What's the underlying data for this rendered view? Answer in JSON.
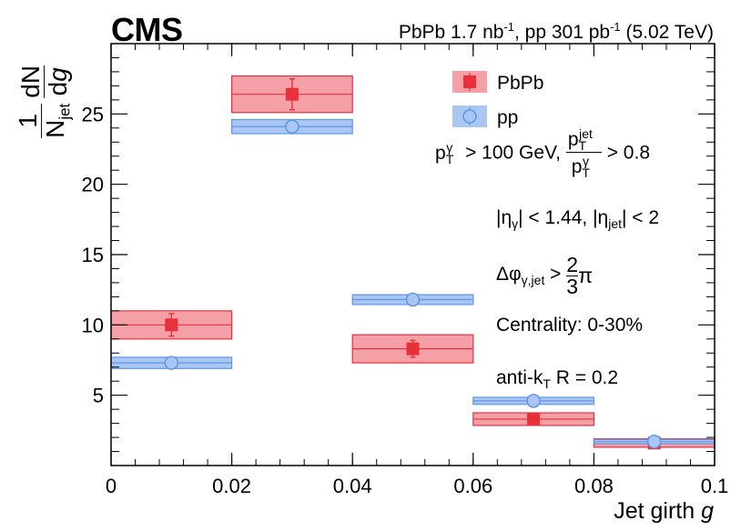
{
  "header": {
    "experiment": "CMS",
    "luminosity_parts": [
      "PbPb 1.7 nb",
      "-1",
      ", pp 301 pb",
      "-1",
      " (5.02 TeV)"
    ]
  },
  "chart_data": {
    "type": "bar",
    "title": "",
    "xlabel": "Jet girth g",
    "ylabel": "1/N_jet dN/dg",
    "xlim": [
      0,
      0.1
    ],
    "ylim": [
      0,
      30
    ],
    "x_ticks": [
      0,
      0.02,
      0.04,
      0.06,
      0.08,
      0.1
    ],
    "x_tick_labels": [
      "0",
      "0.02",
      "0.04",
      "0.06",
      "0.08",
      "0.1"
    ],
    "y_ticks": [
      5,
      10,
      15,
      20,
      25
    ],
    "y_tick_labels": [
      "5",
      "10",
      "15",
      "20",
      "25"
    ],
    "bin_edges": [
      0,
      0.02,
      0.04,
      0.06,
      0.08,
      0.1
    ],
    "bin_centers": [
      0.01,
      0.03,
      0.05,
      0.07,
      0.09
    ],
    "series": [
      {
        "name": "PbPb",
        "marker": "filled-square",
        "color": "#e8303a",
        "band_color": "#f4a0a6",
        "values": [
          10.0,
          26.4,
          8.3,
          3.3,
          1.6
        ],
        "stat_err": [
          0.8,
          1.1,
          0.6,
          0.2,
          0.15
        ],
        "sys_err": [
          1.0,
          1.3,
          1.0,
          0.45,
          0.3
        ]
      },
      {
        "name": "pp",
        "marker": "open-circle",
        "color": "#5f95e8",
        "band_color": "#aac7f4",
        "values": [
          7.3,
          24.1,
          11.8,
          4.6,
          1.7
        ],
        "stat_err": [
          0.1,
          0.2,
          0.1,
          0.05,
          0.05
        ],
        "sys_err": [
          0.4,
          0.5,
          0.35,
          0.25,
          0.15
        ]
      }
    ],
    "legend_position": "top-right"
  },
  "annotations": {
    "photon_cut": "p_T^γ > 100 GeV, p_T^jet / p_T^γ > 0.8",
    "eta_cut": "|η_γ| < 1.44, |η_jet| < 2",
    "dphi_cut": "Δφ_γ,jet > 2/3 π",
    "centrality": "Centrality: 0-30%",
    "algorithm": "anti-k_T R = 0.2"
  }
}
